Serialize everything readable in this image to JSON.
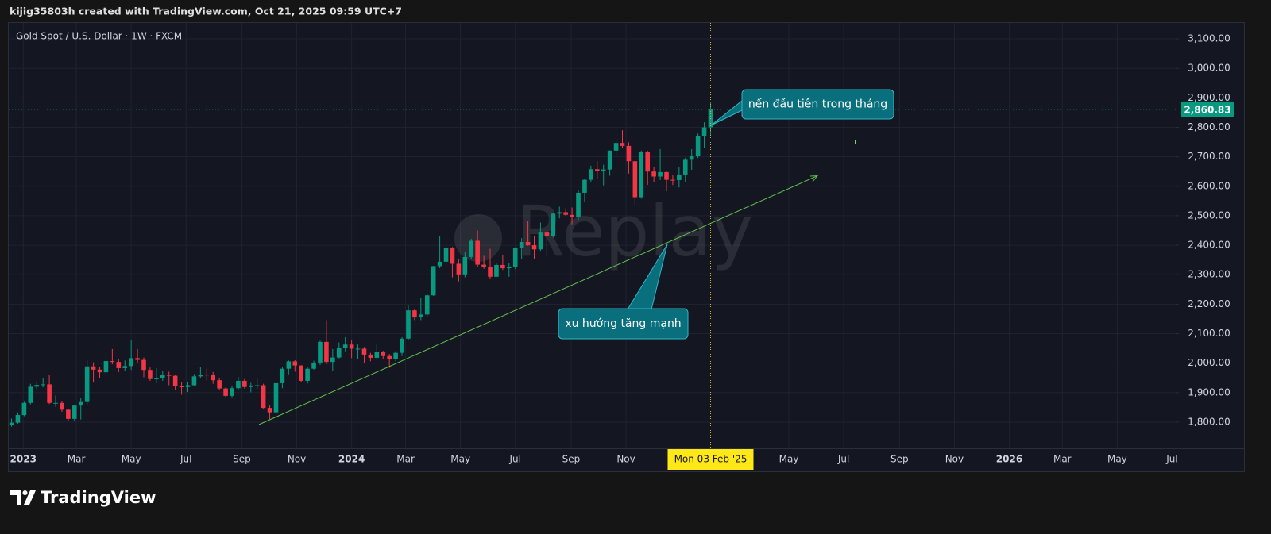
{
  "header": "kijig35803h created with TradingView.com, Oct 21, 2025 09:59 UTC+7",
  "chart_data": {
    "type": "candlestick",
    "title": "Gold Spot / U.S. Dollar · 1W · FXCM",
    "x": [
      "2022-12-19",
      "2022-12-26",
      "2023-01-02",
      "2023-01-09",
      "2023-01-16",
      "2023-01-23",
      "2023-01-30",
      "2023-02-06",
      "2023-02-13",
      "2023-02-20",
      "2023-02-27",
      "2023-03-06",
      "2023-03-13",
      "2023-03-20",
      "2023-03-27",
      "2023-04-03",
      "2023-04-10",
      "2023-04-17",
      "2023-04-24",
      "2023-05-01",
      "2023-05-08",
      "2023-05-15",
      "2023-05-22",
      "2023-05-29",
      "2023-06-05",
      "2023-06-12",
      "2023-06-19",
      "2023-06-26",
      "2023-07-03",
      "2023-07-10",
      "2023-07-17",
      "2023-07-24",
      "2023-07-31",
      "2023-08-07",
      "2023-08-14",
      "2023-08-21",
      "2023-08-28",
      "2023-09-04",
      "2023-09-11",
      "2023-09-18",
      "2023-09-25",
      "2023-10-02",
      "2023-10-09",
      "2023-10-16",
      "2023-10-23",
      "2023-10-30",
      "2023-11-06",
      "2023-11-13",
      "2023-11-20",
      "2023-11-27",
      "2023-12-04",
      "2023-12-11",
      "2023-12-18",
      "2023-12-25",
      "2024-01-01",
      "2024-01-08",
      "2024-01-15",
      "2024-01-22",
      "2024-01-29",
      "2024-02-05",
      "2024-02-12",
      "2024-02-19",
      "2024-02-26",
      "2024-03-04",
      "2024-03-11",
      "2024-03-18",
      "2024-03-25",
      "2024-04-01",
      "2024-04-08",
      "2024-04-15",
      "2024-04-22",
      "2024-04-29",
      "2024-05-06",
      "2024-05-13",
      "2024-05-20",
      "2024-05-27",
      "2024-06-03",
      "2024-06-10",
      "2024-06-17",
      "2024-06-24",
      "2024-07-01",
      "2024-07-08",
      "2024-07-15",
      "2024-07-22",
      "2024-07-29",
      "2024-08-05",
      "2024-08-12",
      "2024-08-19",
      "2024-08-26",
      "2024-09-02",
      "2024-09-09",
      "2024-09-16",
      "2024-09-23",
      "2024-09-30",
      "2024-10-07",
      "2024-10-14",
      "2024-10-21",
      "2024-10-28",
      "2024-11-04",
      "2024-11-11",
      "2024-11-18",
      "2024-11-25",
      "2024-12-02",
      "2024-12-09",
      "2024-12-16",
      "2024-12-23",
      "2024-12-30",
      "2025-01-06",
      "2025-01-13",
      "2025-01-20",
      "2025-01-27",
      "2025-02-03"
    ],
    "open": [
      1790,
      1798,
      1824,
      1865,
      1920,
      1926,
      1928,
      1865,
      1865,
      1842,
      1811,
      1856,
      1868,
      1989,
      1978,
      1969,
      2007,
      2004,
      1983,
      1990,
      2017,
      2011,
      1977,
      1946,
      1948,
      1961,
      1957,
      1921,
      1919,
      1925,
      1955,
      1961,
      1959,
      1942,
      1914,
      1889,
      1915,
      1940,
      1919,
      1924,
      1925,
      1848,
      1833,
      1932,
      1981,
      2006,
      1992,
      1940,
      1981,
      2002,
      2072,
      2004,
      2019,
      2053,
      2063,
      2049,
      2049,
      2029,
      2018,
      2039,
      2024,
      2013,
      2035,
      2083,
      2179,
      2155,
      2165,
      2230,
      2329,
      2344,
      2391,
      2337,
      2301,
      2360,
      2415,
      2334,
      2327,
      2293,
      2333,
      2322,
      2326,
      2392,
      2411,
      2400,
      2386,
      2443,
      2431,
      2507,
      2512,
      2503,
      2497,
      2578,
      2622,
      2658,
      2653,
      2657,
      2721,
      2747,
      2737,
      2685,
      2563,
      2716,
      2650,
      2633,
      2648,
      2622,
      2621,
      2640,
      2690,
      2703,
      2770,
      2800
    ],
    "high": [
      1812,
      1833,
      1869,
      1930,
      1937,
      1949,
      1960,
      1890,
      1870,
      1846,
      1859,
      1883,
      2009,
      2003,
      1986,
      2032,
      2048,
      2015,
      2009,
      2079,
      2048,
      2019,
      1985,
      1983,
      1972,
      1971,
      1959,
      1935,
      1935,
      1963,
      1987,
      1982,
      1970,
      1950,
      1918,
      1923,
      1953,
      1946,
      1933,
      1947,
      1930,
      1858,
      1938,
      1987,
      2009,
      2010,
      1993,
      1988,
      2008,
      2076,
      2146,
      2048,
      2070,
      2088,
      2078,
      2063,
      2055,
      2035,
      2065,
      2042,
      2031,
      2041,
      2088,
      2195,
      2185,
      2222,
      2236,
      2330,
      2431,
      2418,
      2394,
      2353,
      2378,
      2422,
      2450,
      2364,
      2388,
      2338,
      2368,
      2339,
      2393,
      2424,
      2483,
      2432,
      2477,
      2450,
      2509,
      2531,
      2525,
      2528,
      2586,
      2626,
      2670,
      2685,
      2673,
      2722,
      2758,
      2790,
      2749,
      2686,
      2721,
      2721,
      2665,
      2726,
      2652,
      2639,
      2665,
      2697,
      2726,
      2779,
      2817,
      2886
    ],
    "low": [
      1785,
      1795,
      1820,
      1860,
      1909,
      1918,
      1861,
      1852,
      1835,
      1805,
      1804,
      1809,
      1858,
      1934,
      1949,
      1950,
      1996,
      1969,
      1974,
      1977,
      2000,
      1952,
      1940,
      1932,
      1940,
      1925,
      1910,
      1893,
      1902,
      1922,
      1950,
      1942,
      1930,
      1910,
      1885,
      1884,
      1910,
      1914,
      1901,
      1913,
      1846,
      1810,
      1828,
      1915,
      1962,
      1971,
      1935,
      1931,
      1978,
      1994,
      1996,
      1973,
      2016,
      2040,
      2017,
      2014,
      2002,
      2006,
      2012,
      2015,
      1984,
      2006,
      2024,
      2078,
      2146,
      2146,
      2158,
      2228,
      2322,
      2325,
      2291,
      2277,
      2291,
      2353,
      2325,
      2320,
      2286,
      2302,
      2316,
      2293,
      2319,
      2353,
      2398,
      2353,
      2381,
      2364,
      2426,
      2491,
      2500,
      2471,
      2485,
      2546,
      2614,
      2624,
      2603,
      2636,
      2704,
      2729,
      2643,
      2537,
      2558,
      2605,
      2613,
      2621,
      2583,
      2604,
      2596,
      2614,
      2656,
      2696,
      2729,
      2772
    ],
    "close": [
      1798,
      1824,
      1865,
      1920,
      1926,
      1928,
      1865,
      1865,
      1842,
      1811,
      1856,
      1868,
      1989,
      1978,
      1969,
      2007,
      2004,
      1983,
      1990,
      2017,
      2011,
      1977,
      1946,
      1948,
      1961,
      1957,
      1921,
      1919,
      1925,
      1955,
      1961,
      1959,
      1942,
      1914,
      1889,
      1915,
      1940,
      1919,
      1924,
      1925,
      1848,
      1833,
      1932,
      1981,
      2006,
      1992,
      1940,
      1981,
      2002,
      2072,
      2004,
      2019,
      2053,
      2063,
      2049,
      2049,
      2029,
      2018,
      2039,
      2024,
      2013,
      2035,
      2083,
      2179,
      2155,
      2165,
      2230,
      2329,
      2344,
      2391,
      2337,
      2301,
      2360,
      2415,
      2334,
      2327,
      2293,
      2333,
      2322,
      2326,
      2392,
      2411,
      2400,
      2386,
      2443,
      2431,
      2507,
      2512,
      2503,
      2497,
      2578,
      2622,
      2658,
      2653,
      2657,
      2721,
      2747,
      2737,
      2685,
      2563,
      2716,
      2650,
      2633,
      2648,
      2622,
      2621,
      2640,
      2690,
      2703,
      2770,
      2800,
      2860.83
    ],
    "up_color": "#089981",
    "down_color": "#f23645",
    "xlim": [
      "2022-12-15",
      "2026-07-05"
    ],
    "xticks": [
      {
        "value": "2023-01",
        "label": "2023"
      },
      {
        "value": "2023-03",
        "label": "Mar"
      },
      {
        "value": "2023-05",
        "label": "May"
      },
      {
        "value": "2023-07",
        "label": "Jul"
      },
      {
        "value": "2023-09",
        "label": "Sep"
      },
      {
        "value": "2023-11",
        "label": "Nov"
      },
      {
        "value": "2024-01",
        "label": "2024"
      },
      {
        "value": "2024-03",
        "label": "Mar"
      },
      {
        "value": "2024-05",
        "label": "May"
      },
      {
        "value": "2024-07",
        "label": "Jul"
      },
      {
        "value": "2024-09",
        "label": "Sep"
      },
      {
        "value": "2024-11",
        "label": "Nov"
      },
      {
        "value": "2025-05",
        "label": "May"
      },
      {
        "value": "2025-07",
        "label": "Jul"
      },
      {
        "value": "2025-09",
        "label": "Sep"
      },
      {
        "value": "2025-11",
        "label": "Nov"
      },
      {
        "value": "2026-01",
        "label": "2026"
      },
      {
        "value": "2026-03",
        "label": "Mar"
      },
      {
        "value": "2026-05",
        "label": "May"
      },
      {
        "value": "2026-07",
        "label": "Jul"
      }
    ],
    "ylim": [
      1711,
      3154
    ],
    "yticks": [
      {
        "value": 1800,
        "label": "1,800.00"
      },
      {
        "value": 1900,
        "label": "1,900.00"
      },
      {
        "value": 2000,
        "label": "2,000.00"
      },
      {
        "value": 2100,
        "label": "2,100.00"
      },
      {
        "value": 2200,
        "label": "2,200.00"
      },
      {
        "value": 2300,
        "label": "2,300.00"
      },
      {
        "value": 2400,
        "label": "2,400.00"
      },
      {
        "value": 2500,
        "label": "2,500.00"
      },
      {
        "value": 2600,
        "label": "2,600.00"
      },
      {
        "value": 2700,
        "label": "2,700.00"
      },
      {
        "value": 2800,
        "label": "2,800.00"
      },
      {
        "value": 2900,
        "label": "2,900.00"
      },
      {
        "value": 3000,
        "label": "3,000.00"
      },
      {
        "value": 3100,
        "label": "3,100.00"
      }
    ],
    "grid": true,
    "last_price": {
      "value": 2860.83,
      "label": "2,860.83"
    },
    "crosshair": {
      "value": "2025-02-03",
      "label": "Mon 03 Feb '25"
    },
    "annotations": [
      "nến đầu tiên trong tháng",
      "xu hướng tăng mạnh"
    ],
    "watermark": "Replay"
  },
  "footer": {
    "logo": "TradingView"
  }
}
